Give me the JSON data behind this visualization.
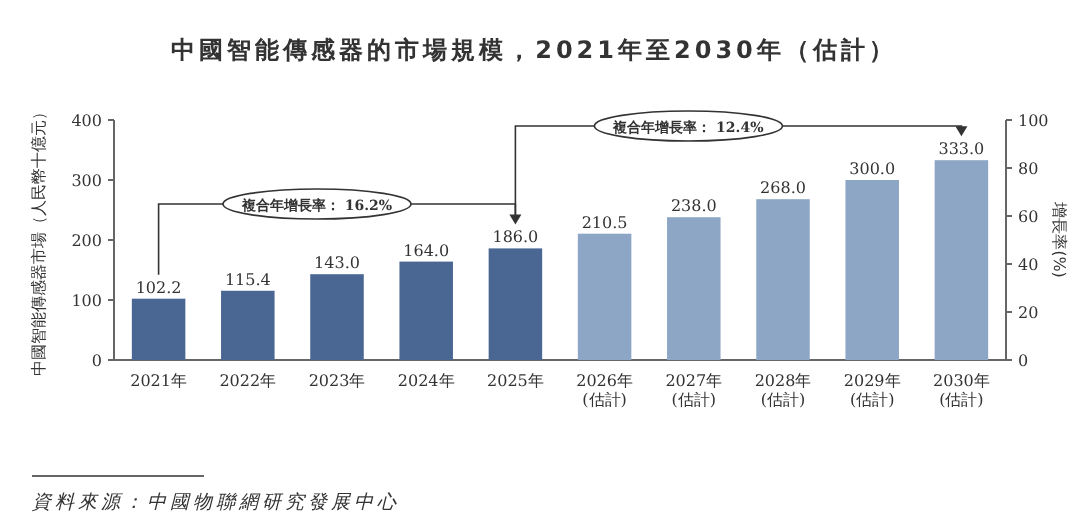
{
  "chart_data": {
    "type": "bar",
    "title": "中國智能傳感器的市場規模，2021年至2030年（估計）",
    "ylabel": "中國智能傳感器市場（人民幣十億元）",
    "y2label": "增長率(%)",
    "categories": [
      "2021年",
      "2022年",
      "2023年",
      "2024年",
      "2025年",
      "2026年\n(估計)",
      "2027年\n(估計)",
      "2028年\n(估計)",
      "2029年\n(估計)",
      "2030年\n(估計)"
    ],
    "values": [
      102.2,
      115.4,
      143.0,
      164.0,
      186.0,
      210.5,
      238.0,
      268.0,
      300.0,
      333.0
    ],
    "value_labels": [
      "102.2",
      "115.4",
      "143.0",
      "164.0",
      "186.0",
      "210.5",
      "238.0",
      "268.0",
      "300.0",
      "333.0"
    ],
    "colors": [
      "#4a6794",
      "#4a6794",
      "#4a6794",
      "#4a6794",
      "#4a6794",
      "#8da6c6",
      "#8da6c6",
      "#8da6c6",
      "#8da6c6",
      "#8da6c6"
    ],
    "ylim": [
      0,
      400
    ],
    "yticks": [
      0,
      100,
      200,
      300,
      400
    ],
    "y2lim": [
      0,
      100
    ],
    "y2ticks": [
      0,
      20,
      40,
      60,
      80,
      100
    ],
    "annotations": [
      "複合年增長率： 16.2%",
      "複合年增長率： 12.4%",
      "資料來源：中國物聯網研究發展中心"
    ]
  }
}
